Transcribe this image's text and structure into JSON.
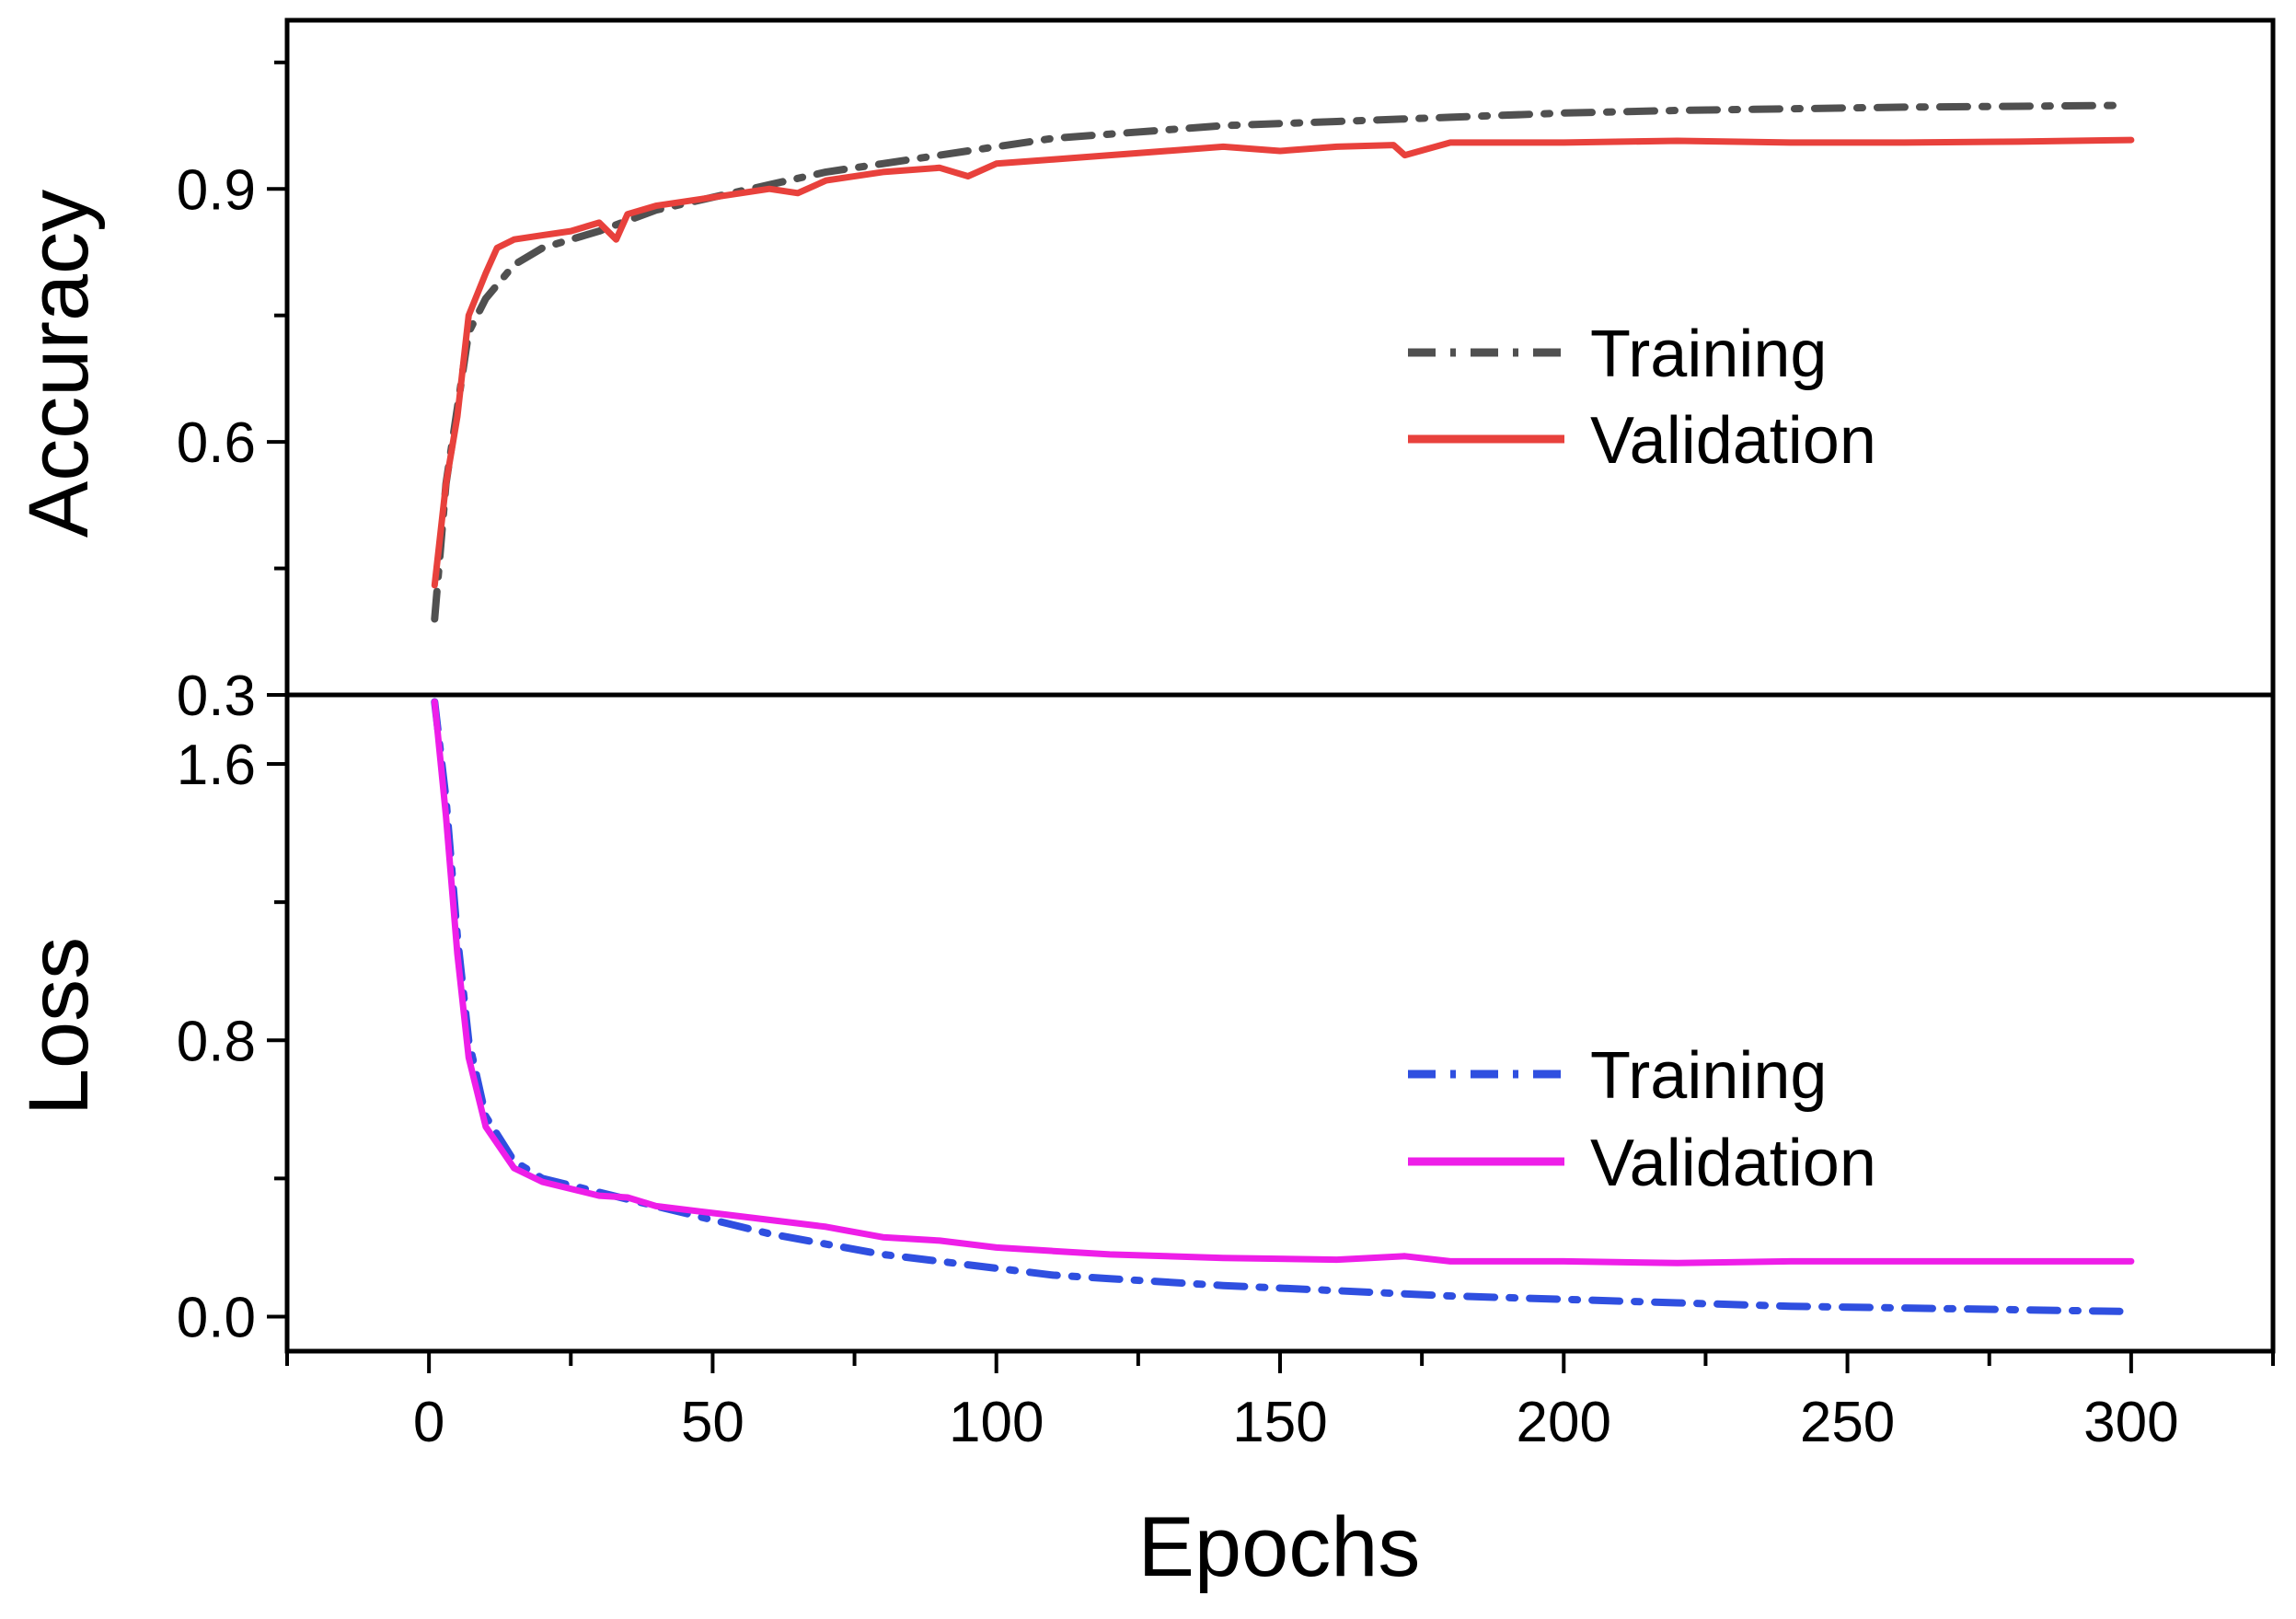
{
  "chart_data": [
    {
      "type": "line",
      "panel": "top",
      "ylabel": "Accuracy",
      "xlabel": "",
      "xlim": [
        -25,
        325
      ],
      "ylim": [
        0.3,
        1.1
      ],
      "yticks": [
        0.3,
        0.6,
        0.9
      ],
      "ytick_labels": [
        "0.3",
        "0.6",
        "0.9"
      ],
      "legend": {
        "placement": "center-right"
      },
      "series": [
        {
          "name": "Training",
          "style": "dash-dot",
          "color": "#505050",
          "x": [
            1,
            3,
            5,
            7,
            10,
            15,
            20,
            25,
            30,
            40,
            50,
            60,
            70,
            80,
            90,
            100,
            110,
            120,
            140,
            160,
            180,
            200,
            220,
            240,
            260,
            280,
            298
          ],
          "y": [
            0.39,
            0.55,
            0.64,
            0.73,
            0.77,
            0.81,
            0.83,
            0.84,
            0.85,
            0.875,
            0.89,
            0.905,
            0.92,
            0.93,
            0.94,
            0.95,
            0.96,
            0.965,
            0.975,
            0.98,
            0.985,
            0.99,
            0.993,
            0.995,
            0.997,
            0.998,
            0.999
          ]
        },
        {
          "name": "Validation",
          "style": "solid",
          "color": "#e8413c",
          "x": [
            1,
            3,
            5,
            7,
            10,
            12,
            15,
            20,
            25,
            30,
            33,
            35,
            40,
            50,
            60,
            65,
            70,
            80,
            90,
            95,
            100,
            110,
            120,
            130,
            140,
            150,
            160,
            170,
            172,
            180,
            200,
            220,
            240,
            260,
            280,
            300
          ],
          "y": [
            0.43,
            0.55,
            0.63,
            0.75,
            0.8,
            0.83,
            0.84,
            0.845,
            0.85,
            0.86,
            0.84,
            0.87,
            0.88,
            0.89,
            0.9,
            0.895,
            0.91,
            0.92,
            0.925,
            0.915,
            0.93,
            0.935,
            0.94,
            0.945,
            0.95,
            0.945,
            0.95,
            0.952,
            0.94,
            0.955,
            0.955,
            0.957,
            0.955,
            0.955,
            0.956,
            0.958
          ]
        }
      ]
    },
    {
      "type": "line",
      "panel": "bottom",
      "ylabel": "Loss",
      "xlabel": "Epochs",
      "xlim": [
        -25,
        325
      ],
      "ylim": [
        -0.1,
        1.8
      ],
      "yticks": [
        0.0,
        0.8,
        1.6
      ],
      "ytick_labels": [
        "0.0",
        "0.8",
        "1.6"
      ],
      "xticks": [
        0,
        50,
        100,
        150,
        200,
        250,
        300
      ],
      "xtick_labels": [
        "0",
        "50",
        "100",
        "150",
        "200",
        "250",
        "300"
      ],
      "legend": {
        "placement": "center-right"
      },
      "series": [
        {
          "name": "Training",
          "style": "dash-dot",
          "color": "#2f4fe0",
          "x": [
            1,
            3,
            5,
            7,
            10,
            15,
            20,
            30,
            40,
            50,
            60,
            70,
            80,
            90,
            100,
            110,
            120,
            140,
            160,
            180,
            200,
            220,
            240,
            260,
            280,
            298
          ],
          "y": [
            1.78,
            1.5,
            1.1,
            0.8,
            0.58,
            0.45,
            0.4,
            0.36,
            0.32,
            0.28,
            0.24,
            0.21,
            0.18,
            0.16,
            0.14,
            0.12,
            0.11,
            0.09,
            0.075,
            0.06,
            0.05,
            0.04,
            0.03,
            0.025,
            0.02,
            0.015
          ]
        },
        {
          "name": "Validation",
          "style": "solid",
          "color": "#ee1ee8",
          "x": [
            1,
            3,
            5,
            7,
            10,
            15,
            20,
            30,
            35,
            40,
            50,
            60,
            70,
            80,
            90,
            100,
            110,
            120,
            140,
            160,
            172,
            180,
            200,
            220,
            240,
            260,
            280,
            300
          ],
          "y": [
            1.78,
            1.45,
            1.05,
            0.75,
            0.55,
            0.43,
            0.39,
            0.35,
            0.345,
            0.32,
            0.3,
            0.28,
            0.26,
            0.23,
            0.22,
            0.2,
            0.19,
            0.18,
            0.17,
            0.165,
            0.175,
            0.16,
            0.16,
            0.155,
            0.16,
            0.16,
            0.16,
            0.16
          ]
        }
      ]
    }
  ]
}
